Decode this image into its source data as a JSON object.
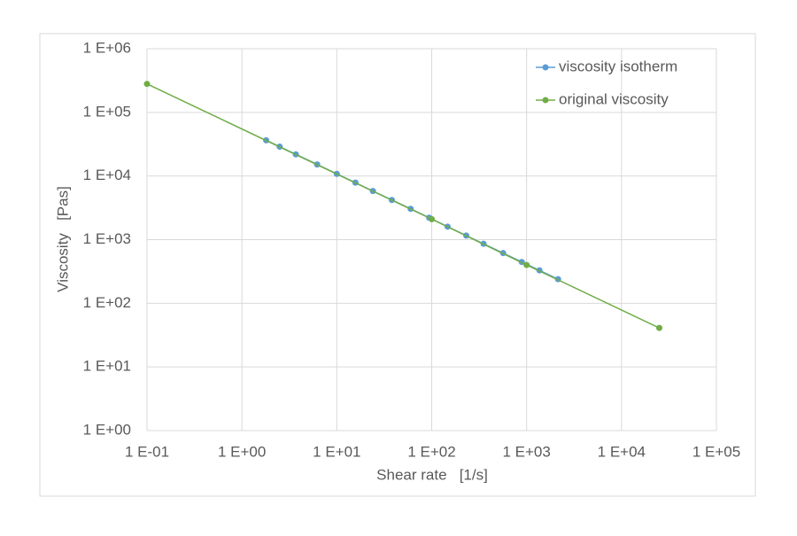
{
  "chart_data": {
    "type": "line",
    "xlabel": "Shear rate   [1/s]",
    "ylabel": "Viscosity   [Pas]",
    "xscale": "log",
    "yscale": "log",
    "grid": true,
    "legend": "upper right",
    "xlim": [
      0.1,
      100000
    ],
    "ylim": [
      1,
      1000000
    ],
    "xticks": [
      {
        "value": 0.1,
        "label": "1 E-01"
      },
      {
        "value": 1,
        "label": "1 E+00"
      },
      {
        "value": 10,
        "label": "1 E+01"
      },
      {
        "value": 100,
        "label": "1 E+02"
      },
      {
        "value": 1000,
        "label": "1 E+03"
      },
      {
        "value": 10000,
        "label": "1 E+04"
      },
      {
        "value": 100000,
        "label": "1 E+05"
      }
    ],
    "yticks": [
      {
        "value": 1,
        "label": "1 E+00"
      },
      {
        "value": 10,
        "label": "1 E+01"
      },
      {
        "value": 100,
        "label": "1 E+02"
      },
      {
        "value": 1000,
        "label": "1 E+03"
      },
      {
        "value": 10000,
        "label": "1 E+04"
      },
      {
        "value": 100000,
        "label": "1 E+05"
      },
      {
        "value": 1000000,
        "label": "1 E+06"
      }
    ],
    "series": [
      {
        "name": "viscosity isotherm",
        "color": "#5b9bd5",
        "x": [
          1.8,
          2.5,
          3.7,
          6.2,
          10,
          15.7,
          24,
          38,
          60,
          94,
          147,
          231,
          352,
          566,
          889,
          1366,
          2144
        ],
        "values": [
          36400,
          28900,
          21900,
          15200,
          10800,
          7870,
          5800,
          4200,
          3050,
          2210,
          1600,
          1160,
          861,
          615,
          446,
          329,
          239
        ]
      },
      {
        "name": "original viscosity",
        "color": "#70ad47",
        "x": [
          0.1,
          100,
          1000,
          25000
        ],
        "values": [
          280000,
          2100,
          400,
          41
        ]
      }
    ]
  }
}
